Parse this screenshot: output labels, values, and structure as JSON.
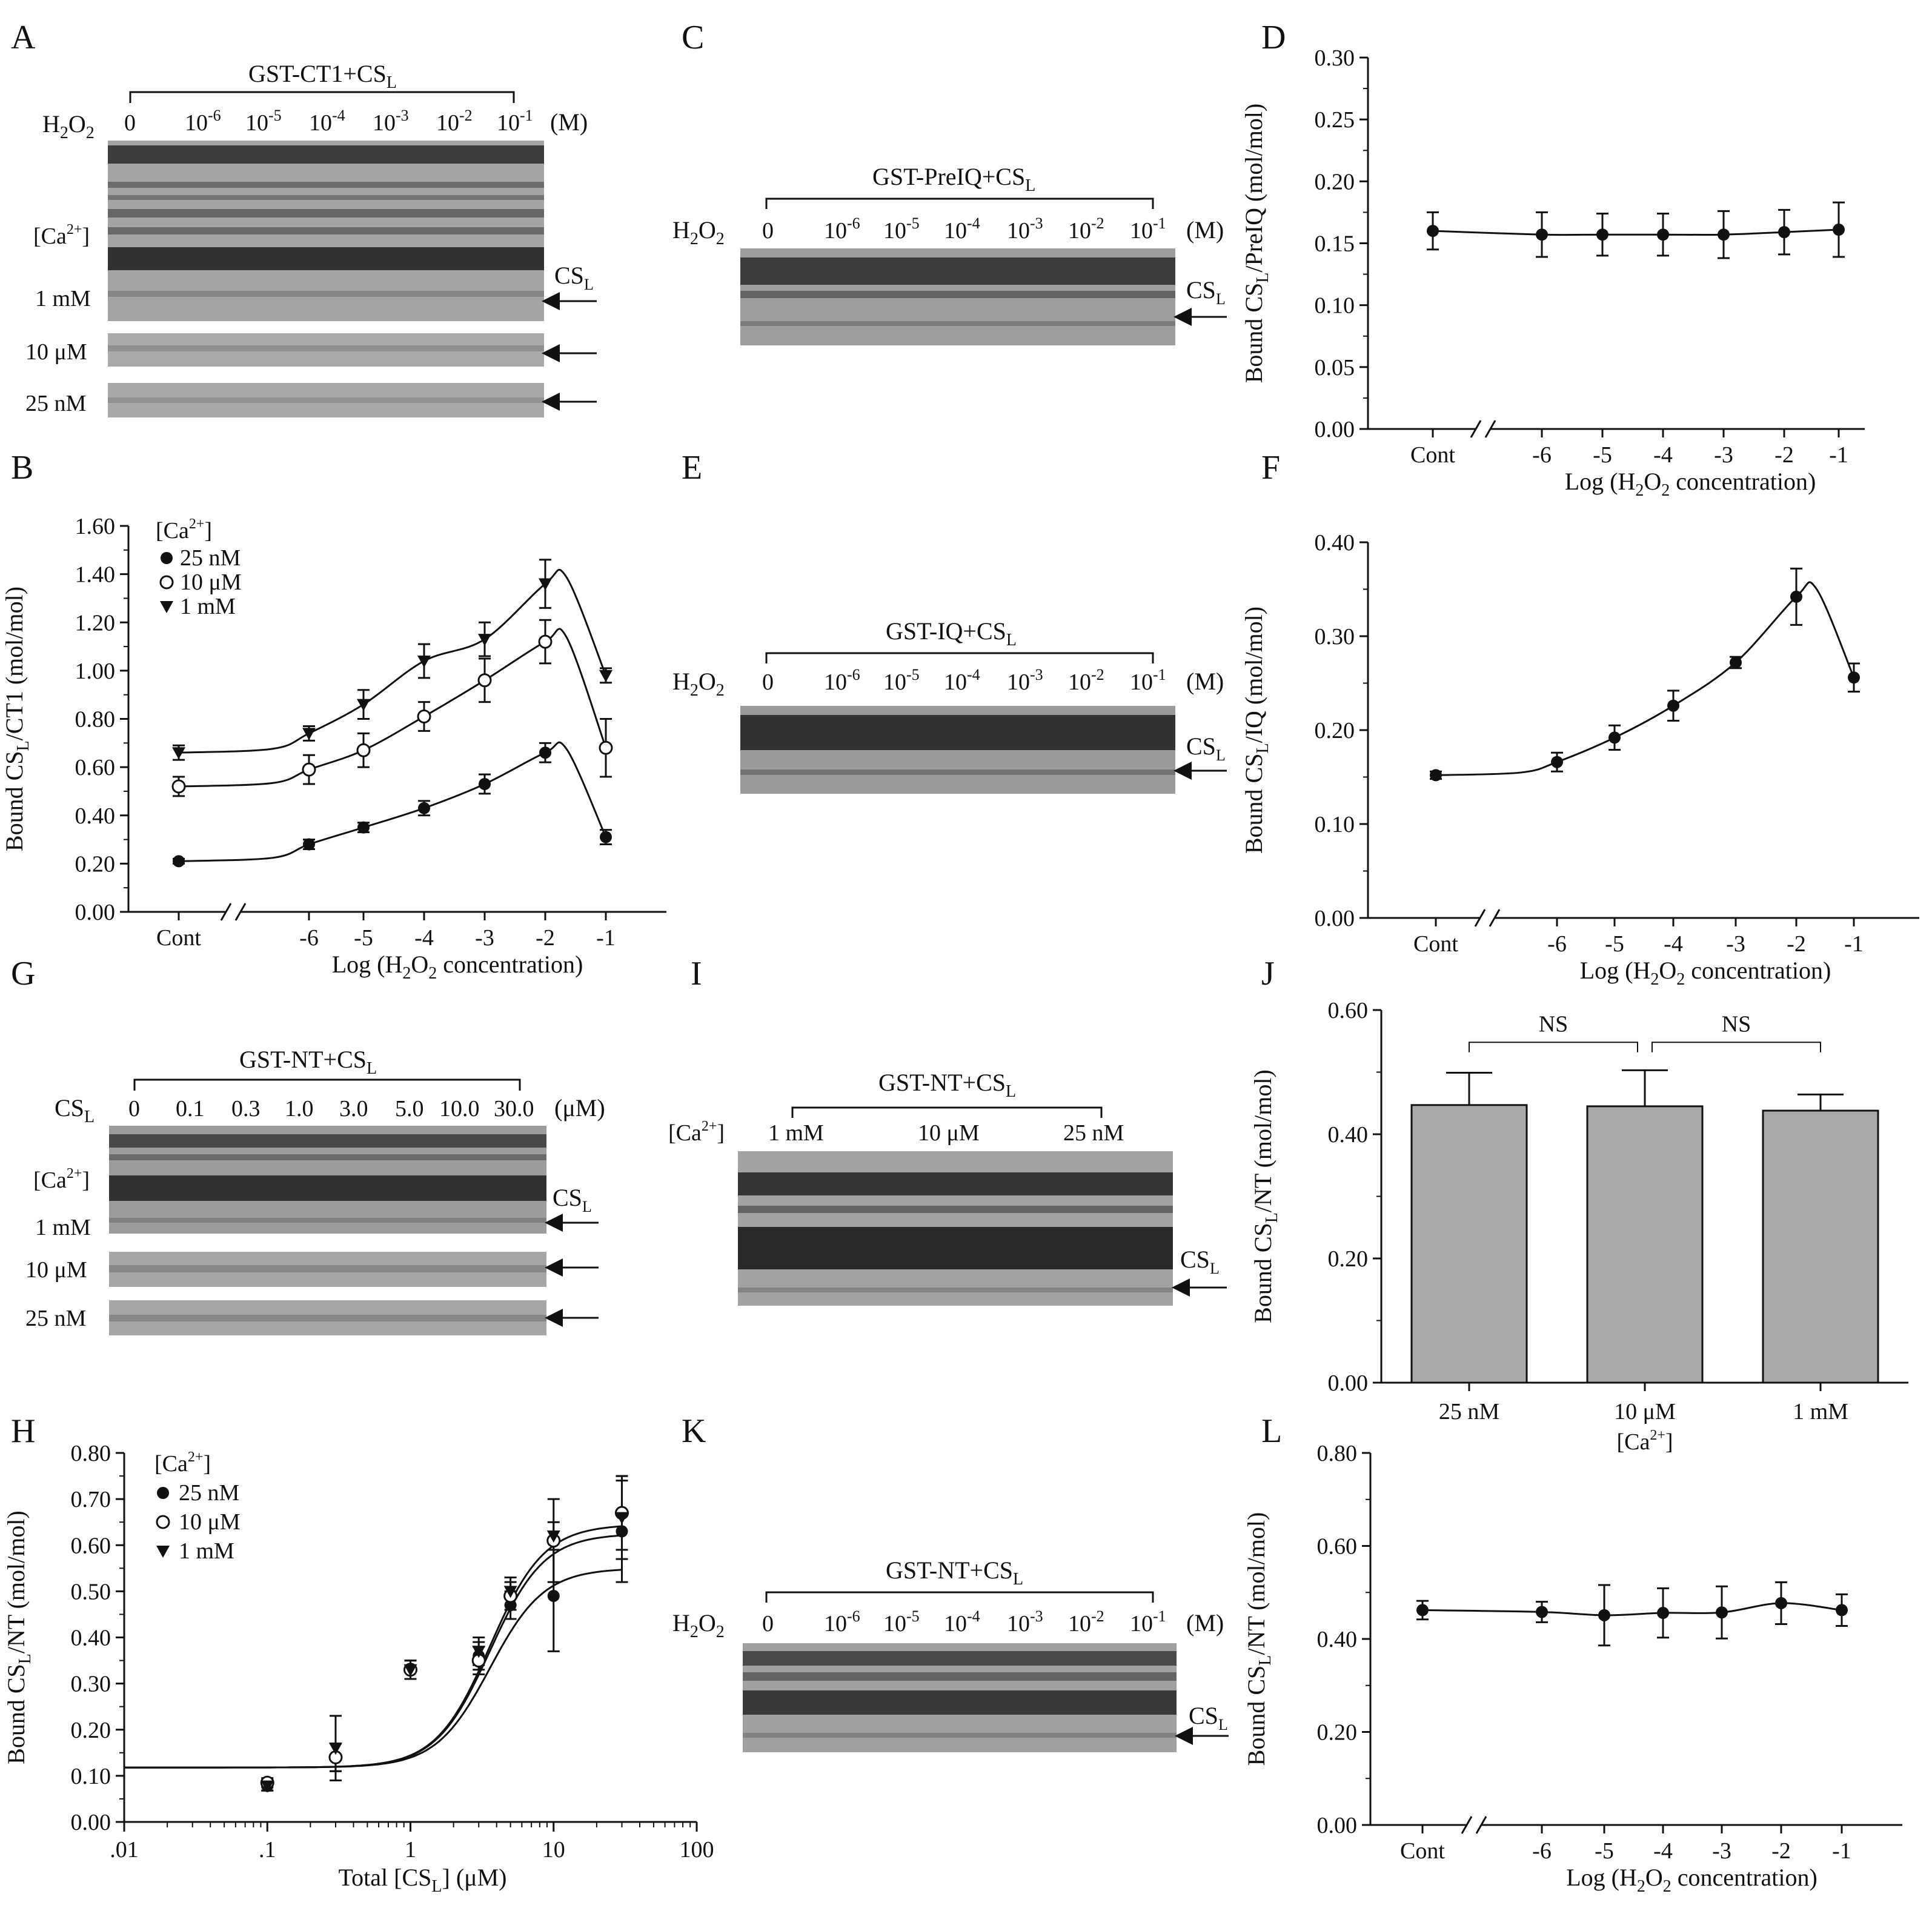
{
  "panels": {
    "A": {
      "letter": "A",
      "construct": "GST-CT1+CS",
      "construct_sub": "L",
      "row_label": "H",
      "row_label_sub": "2",
      "row_label_rest": "O",
      "row_label_sub2": "2",
      "lanes": [
        {
          "base": "0",
          "exp": ""
        },
        {
          "base": "10",
          "exp": "-6"
        },
        {
          "base": "10",
          "exp": "-5"
        },
        {
          "base": "10",
          "exp": "-4"
        },
        {
          "base": "10",
          "exp": "-3"
        },
        {
          "base": "10",
          "exp": "-2"
        },
        {
          "base": "10",
          "exp": "-1"
        }
      ],
      "unit": "(M)",
      "ca_label": "[Ca",
      "ca_sup": "2+",
      "ca_close": "]",
      "strips": [
        "1 mM",
        "10 μM",
        "25 nM"
      ],
      "cs_label": "CS",
      "cs_sub": "L"
    },
    "C": {
      "letter": "C",
      "construct": "GST-PreIQ+CS",
      "construct_sub": "L",
      "lanes": [
        "0",
        "10-6",
        "10-5",
        "10-4",
        "10-3",
        "10-2",
        "10-1"
      ],
      "unit": "(M)",
      "cs_label": "CS",
      "cs_sub": "L"
    },
    "E": {
      "letter": "E",
      "construct": "GST-IQ+CS",
      "construct_sub": "L",
      "unit": "(M)",
      "cs_label": "CS",
      "cs_sub": "L"
    },
    "G": {
      "letter": "G",
      "construct": "GST-NT+CS",
      "construct_sub": "L",
      "row_label": "CS",
      "row_label_sub": "L",
      "lanes": [
        "0",
        "0.1",
        "0.3",
        "1.0",
        "3.0",
        "5.0",
        "10.0",
        "30.0"
      ],
      "unit": "(μM)",
      "ca_label": "[Ca",
      "ca_sup": "2+",
      "ca_close": "]",
      "strips": [
        "1 mM",
        "10 μM",
        "25 nM"
      ],
      "cs_label": "CS",
      "cs_sub": "L"
    },
    "I": {
      "letter": "I",
      "construct": "GST-NT+CS",
      "construct_sub": "L",
      "ca_label": "[Ca",
      "ca_sup": "2+",
      "ca_close": "]",
      "lanes": [
        "1 mM",
        "10 μM",
        "25 nM"
      ],
      "cs_label": "CS",
      "cs_sub": "L"
    },
    "K": {
      "letter": "K",
      "construct": "GST-NT+CS",
      "construct_sub": "L",
      "unit": "(M)",
      "cs_label": "CS",
      "cs_sub": "L"
    }
  },
  "chart_data": [
    {
      "id": "D",
      "letter": "D",
      "type": "line",
      "ylabel_pre": "Bound CS",
      "ylabel_sub": "L",
      "ylabel_post": "/PreIQ (mol/mol)",
      "xlabel_pre": "Log (H",
      "xlabel_sub1": "2",
      "xlabel_mid": "O",
      "xlabel_sub2": "2",
      "xlabel_post": " concentration)",
      "ylim": [
        0,
        0.3
      ],
      "yticks": [
        "0.00",
        "0.05",
        "0.10",
        "0.15",
        "0.20",
        "0.25",
        "0.30"
      ],
      "categories": [
        "Cont",
        "-6",
        "-5",
        "-4",
        "-3",
        "-2",
        "-1"
      ],
      "series": [
        {
          "name": "PreIQ",
          "marker": "filled-circle",
          "values": [
            0.16,
            0.157,
            0.157,
            0.157,
            0.157,
            0.159,
            0.161
          ],
          "errors": [
            0.015,
            0.018,
            0.017,
            0.017,
            0.019,
            0.018,
            0.022
          ]
        }
      ]
    },
    {
      "id": "B",
      "letter": "B",
      "type": "line",
      "ylabel_pre": "Bound CS",
      "ylabel_sub": "L",
      "ylabel_post": "/CT1 (mol/mol)",
      "xlabel_pre": "Log (H",
      "xlabel_sub1": "2",
      "xlabel_mid": "O",
      "xlabel_sub2": "2",
      "xlabel_post": " concentration)",
      "ylim": [
        0,
        1.6
      ],
      "yticks": [
        "0.00",
        "0.20",
        "0.40",
        "0.60",
        "0.80",
        "1.00",
        "1.20",
        "1.40",
        "1.60"
      ],
      "categories": [
        "Cont",
        "-6",
        "-5",
        "-4",
        "-3",
        "-2",
        "-1"
      ],
      "legend_title_pre": "[Ca",
      "legend_title_sup": "2+",
      "legend_title_post": "]",
      "series": [
        {
          "name": "25 nM",
          "marker": "filled-circle",
          "values": [
            0.21,
            0.28,
            0.35,
            0.43,
            0.53,
            0.66,
            0.31
          ],
          "errors": [
            0.01,
            0.02,
            0.02,
            0.03,
            0.04,
            0.04,
            0.03
          ]
        },
        {
          "name": "10 μM",
          "marker": "open-circle",
          "values": [
            0.52,
            0.59,
            0.67,
            0.81,
            0.96,
            1.12,
            0.68
          ],
          "errors": [
            0.04,
            0.06,
            0.07,
            0.06,
            0.09,
            0.09,
            0.12
          ]
        },
        {
          "name": "1 mM",
          "marker": "filled-triangle",
          "values": [
            0.66,
            0.74,
            0.86,
            1.04,
            1.13,
            1.36,
            0.98
          ],
          "errors": [
            0.03,
            0.03,
            0.06,
            0.07,
            0.07,
            0.1,
            0.03
          ]
        }
      ]
    },
    {
      "id": "F",
      "letter": "F",
      "type": "line",
      "ylabel_pre": "Bound CS",
      "ylabel_sub": "L",
      "ylabel_post": "/IQ (mol/mol)",
      "xlabel_pre": "Log (H",
      "xlabel_sub1": "2",
      "xlabel_mid": "O",
      "xlabel_sub2": "2",
      "xlabel_post": " concentration)",
      "ylim": [
        0,
        0.4
      ],
      "yticks": [
        "0.00",
        "0.10",
        "0.20",
        "0.30",
        "0.40"
      ],
      "categories": [
        "Cont",
        "-6",
        "-5",
        "-4",
        "-3",
        "-2",
        "-1"
      ],
      "series": [
        {
          "name": "IQ",
          "marker": "filled-circle",
          "values": [
            0.152,
            0.166,
            0.192,
            0.226,
            0.272,
            0.342,
            0.256
          ],
          "errors": [
            0.004,
            0.01,
            0.013,
            0.016,
            0.006,
            0.03,
            0.015
          ]
        }
      ]
    },
    {
      "id": "J",
      "letter": "J",
      "type": "bar",
      "ylabel_pre": "Bound CS",
      "ylabel_sub": "L",
      "ylabel_post": "/NT (mol/mol)",
      "xlabel_pre": "[Ca",
      "xlabel_sup": "2+",
      "xlabel_post": "]",
      "ylim": [
        0,
        0.6
      ],
      "yticks": [
        "0.00",
        "0.20",
        "0.40",
        "0.60"
      ],
      "categories": [
        "25 nM",
        "10 μM",
        "1 mM"
      ],
      "values": [
        0.447,
        0.445,
        0.438
      ],
      "errors": [
        0.052,
        0.058,
        0.026
      ],
      "annotations": [
        "NS",
        "NS"
      ]
    },
    {
      "id": "H",
      "letter": "H",
      "type": "scatter",
      "ylabel_pre": "Bound CS",
      "ylabel_sub": "L",
      "ylabel_post": "/NT (mol/mol)",
      "xlabel_pre": "Total [CS",
      "xlabel_sub": "L",
      "xlabel_post": "] (μM)",
      "xscale": "log",
      "xlim": [
        0.01,
        100
      ],
      "ylim": [
        0,
        0.8
      ],
      "xticks": [
        ".01",
        ".1",
        "1",
        "10",
        "100"
      ],
      "yticks": [
        "0.00",
        "0.10",
        "0.20",
        "0.30",
        "0.40",
        "0.50",
        "0.60",
        "0.70",
        "0.80"
      ],
      "x": [
        0.1,
        0.3,
        1.0,
        3.0,
        5.0,
        10.0,
        30.0
      ],
      "legend_title_pre": "[Ca",
      "legend_title_sup": "2+",
      "legend_title_post": "]",
      "series": [
        {
          "name": "25 nM",
          "marker": "filled-circle",
          "values": [
            0.078,
            0.14,
            0.33,
            0.36,
            0.47,
            0.49,
            0.63
          ],
          "errors": [
            0.01,
            0.03,
            0.02,
            0.03,
            0.03,
            0.12,
            0.11
          ],
          "fit_top": 0.55
        },
        {
          "name": "10 μM",
          "marker": "open-circle",
          "values": [
            0.085,
            0.14,
            0.33,
            0.35,
            0.49,
            0.61,
            0.67
          ],
          "errors": [
            0.01,
            0.03,
            0.02,
            0.03,
            0.03,
            0.09,
            0.08
          ],
          "fit_top": 0.625
        },
        {
          "name": "1 mM",
          "marker": "filled-triangle",
          "values": [
            0.078,
            0.16,
            0.33,
            0.37,
            0.5,
            0.62,
            0.66
          ],
          "errors": [
            0.01,
            0.07,
            0.02,
            0.03,
            0.03,
            0.03,
            0.09
          ],
          "fit_top": 0.645
        }
      ]
    },
    {
      "id": "L",
      "letter": "L",
      "type": "line",
      "ylabel_pre": "Bound CS",
      "ylabel_sub": "L",
      "ylabel_post": "/NT (mol/mol)",
      "xlabel_pre": "Log (H",
      "xlabel_sub1": "2",
      "xlabel_mid": "O",
      "xlabel_sub2": "2",
      "xlabel_post": " concentration)",
      "ylim": [
        0,
        0.8
      ],
      "yticks": [
        "0.00",
        "0.20",
        "0.40",
        "0.60",
        "0.80"
      ],
      "categories": [
        "Cont",
        "-6",
        "-5",
        "-4",
        "-3",
        "-2",
        "-1"
      ],
      "series": [
        {
          "name": "NT",
          "marker": "filled-circle",
          "values": [
            0.462,
            0.458,
            0.451,
            0.456,
            0.457,
            0.477,
            0.462
          ],
          "errors": [
            0.02,
            0.022,
            0.065,
            0.053,
            0.056,
            0.045,
            0.034
          ]
        }
      ]
    }
  ]
}
